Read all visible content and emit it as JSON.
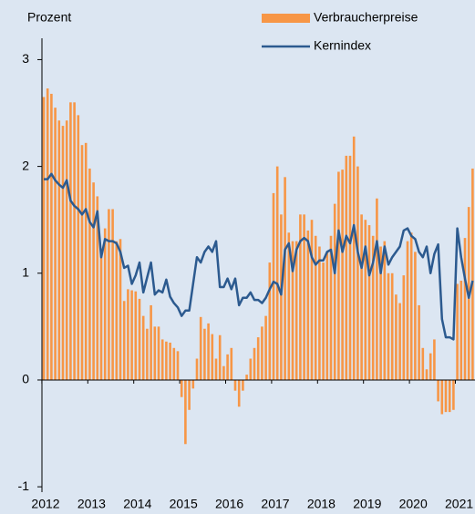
{
  "chart_data": {
    "type": "bar_line",
    "y_label": "Prozent",
    "categories": [
      "2012",
      null,
      null,
      null,
      null,
      null,
      null,
      null,
      null,
      null,
      null,
      null,
      "2013",
      null,
      null,
      null,
      null,
      null,
      null,
      null,
      null,
      null,
      null,
      null,
      "2014",
      null,
      null,
      null,
      null,
      null,
      null,
      null,
      null,
      null,
      null,
      null,
      "2015",
      null,
      null,
      null,
      null,
      null,
      null,
      null,
      null,
      null,
      null,
      null,
      "2016",
      null,
      null,
      null,
      null,
      null,
      null,
      null,
      null,
      null,
      null,
      null,
      "2017",
      null,
      null,
      null,
      null,
      null,
      null,
      null,
      null,
      null,
      null,
      null,
      "2018",
      null,
      null,
      null,
      null,
      null,
      null,
      null,
      null,
      null,
      null,
      null,
      "2019",
      null,
      null,
      null,
      null,
      null,
      null,
      null,
      null,
      null,
      null,
      null,
      "2020",
      null,
      null,
      null,
      null,
      null,
      null,
      null,
      null,
      null,
      null,
      null,
      "2021",
      null,
      null,
      null,
      null
    ],
    "series": [
      {
        "name": "Verbraucherpreise",
        "kind": "bar",
        "color": "#f79646",
        "values": [
          2.65,
          2.73,
          2.68,
          2.55,
          2.43,
          2.38,
          2.43,
          2.6,
          2.6,
          2.48,
          2.2,
          2.22,
          1.98,
          1.85,
          1.72,
          1.21,
          1.42,
          1.6,
          1.6,
          1.3,
          1.32,
          0.74,
          0.85,
          0.84,
          0.83,
          0.76,
          0.6,
          0.48,
          0.7,
          0.5,
          0.5,
          0.38,
          0.36,
          0.35,
          0.3,
          0.27,
          -0.16,
          -0.6,
          -0.28,
          -0.08,
          0.2,
          0.59,
          0.48,
          0.53,
          0.43,
          0.2,
          0.42,
          0.13,
          0.24,
          0.3,
          -0.1,
          -0.25,
          -0.1,
          0.05,
          0.2,
          0.3,
          0.4,
          0.5,
          0.6,
          1.1,
          1.75,
          2.0,
          1.55,
          1.9,
          1.38,
          1.3,
          1.3,
          1.55,
          1.55,
          1.4,
          1.5,
          1.35,
          1.25,
          1.1,
          1.2,
          1.35,
          1.65,
          1.95,
          1.97,
          2.1,
          2.1,
          2.28,
          2.0,
          1.55,
          1.5,
          1.45,
          1.35,
          1.7,
          1.25,
          1.3,
          1.0,
          1.0,
          0.8,
          0.72,
          0.98,
          1.3,
          1.38,
          1.2,
          0.7,
          0.3,
          0.1,
          0.25,
          0.38,
          -0.2,
          -0.32,
          -0.3,
          -0.3,
          -0.28,
          0.9,
          0.93,
          1.33,
          1.62,
          1.98
        ]
      },
      {
        "name": "Kernindex",
        "kind": "line",
        "color": "#2c5a8f",
        "values": [
          1.88,
          1.88,
          1.93,
          1.87,
          1.83,
          1.8,
          1.87,
          1.68,
          1.63,
          1.6,
          1.55,
          1.6,
          1.48,
          1.43,
          1.58,
          1.15,
          1.32,
          1.3,
          1.3,
          1.28,
          1.2,
          1.05,
          1.07,
          0.9,
          0.98,
          1.1,
          0.82,
          0.96,
          1.1,
          0.8,
          0.84,
          0.82,
          0.94,
          0.78,
          0.72,
          0.68,
          0.6,
          0.65,
          0.65,
          0.9,
          1.15,
          1.1,
          1.2,
          1.25,
          1.2,
          1.3,
          0.87,
          0.87,
          0.95,
          0.85,
          0.95,
          0.7,
          0.77,
          0.77,
          0.82,
          0.75,
          0.75,
          0.72,
          0.77,
          0.85,
          0.92,
          0.9,
          0.8,
          1.22,
          1.28,
          1.02,
          1.22,
          1.3,
          1.33,
          1.3,
          1.15,
          1.08,
          1.12,
          1.12,
          1.2,
          1.22,
          1.0,
          1.4,
          1.2,
          1.35,
          1.28,
          1.45,
          1.2,
          1.05,
          1.25,
          0.98,
          1.1,
          1.3,
          1.0,
          1.25,
          1.08,
          1.15,
          1.2,
          1.25,
          1.4,
          1.42,
          1.35,
          1.32,
          1.2,
          1.15,
          1.25,
          1.0,
          1.18,
          1.27,
          0.57,
          0.4,
          0.4,
          0.38,
          1.42,
          1.15,
          0.95,
          0.77,
          0.93
        ]
      }
    ],
    "ylim": [
      -1.05,
      3.2
    ],
    "yticks": [
      -1,
      0,
      1,
      2,
      3
    ],
    "grid": false
  }
}
